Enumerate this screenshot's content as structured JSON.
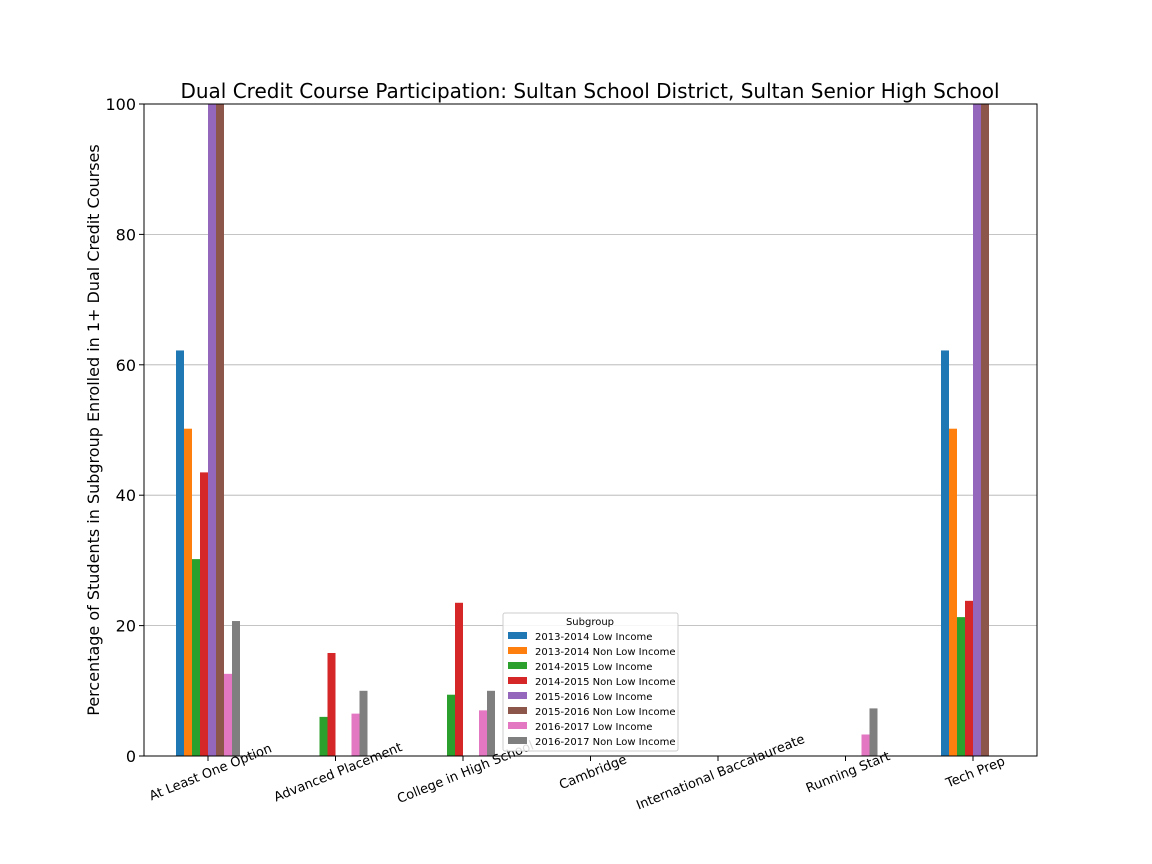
{
  "chart_data": {
    "type": "bar",
    "title": "Dual Credit Course Participation: Sultan School District, Sultan Senior High School",
    "xlabel": "",
    "ylabel": "Percentage of Students in Subgroup Enrolled in 1+ Dual Credit Courses",
    "ylim": [
      0,
      100
    ],
    "yticks": [
      "0",
      "20",
      "40",
      "60",
      "80",
      "100"
    ],
    "grid": "y",
    "legend_title": "Subgroup",
    "legend_placement": "bottom-center",
    "categories": [
      "At Least One Option",
      "Advanced Placement",
      "College in High School",
      "Cambridge",
      "International Baccalaureate",
      "Running Start",
      "Tech Prep"
    ],
    "series": [
      {
        "name": "2013-2014 Low Income",
        "color": "#1f77b4",
        "values": [
          62.2,
          0,
          0,
          0,
          0,
          0,
          62.2
        ]
      },
      {
        "name": "2013-2014 Non Low Income",
        "color": "#ff7f0e",
        "values": [
          50.2,
          0,
          0,
          0,
          0,
          0,
          50.2
        ]
      },
      {
        "name": "2014-2015 Low Income",
        "color": "#2ca02c",
        "values": [
          30.2,
          6.0,
          9.4,
          0,
          0,
          0,
          21.3
        ]
      },
      {
        "name": "2014-2015 Non Low Income",
        "color": "#d62728",
        "values": [
          43.5,
          15.8,
          23.5,
          0,
          0,
          0,
          23.8
        ]
      },
      {
        "name": "2015-2016 Low Income",
        "color": "#9467bd",
        "values": [
          100,
          0,
          0,
          0,
          0,
          0,
          100
        ]
      },
      {
        "name": "2015-2016 Non Low Income",
        "color": "#8c564b",
        "values": [
          100,
          0,
          0,
          0,
          0,
          0,
          100
        ]
      },
      {
        "name": "2016-2017 Low Income",
        "color": "#e377c2",
        "values": [
          12.6,
          6.5,
          7.0,
          0,
          0,
          3.3,
          0
        ]
      },
      {
        "name": "2016-2017 Non Low Income",
        "color": "#7f7f7f",
        "values": [
          20.7,
          10.0,
          10.0,
          0,
          0,
          7.3,
          0
        ]
      }
    ]
  }
}
